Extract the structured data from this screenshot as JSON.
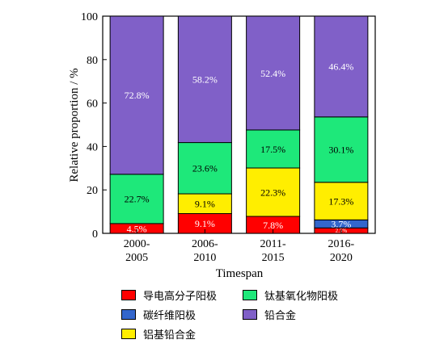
{
  "chart_data": {
    "type": "bar",
    "stacked": true,
    "xlabel": "Timespan",
    "ylabel": "Relative proportion / %",
    "ylim": [
      0,
      100
    ],
    "yticks": [
      0,
      20,
      40,
      60,
      80,
      100
    ],
    "categories": [
      [
        "2000-",
        "2005"
      ],
      [
        "2006-",
        "2010"
      ],
      [
        "2011-",
        "2015"
      ],
      [
        "2016-",
        "2020"
      ]
    ],
    "series": [
      {
        "name": "导电高分子阳极",
        "color": "#ff0000",
        "values": [
          4.5,
          9.1,
          7.8,
          2.5
        ],
        "labels": [
          "4.5%",
          "9.1%",
          "7.8%",
          "2.5%"
        ],
        "label_color": "#ffffff"
      },
      {
        "name": "碳纤维阳极",
        "color": "#3366cc",
        "values": [
          0,
          0,
          0,
          3.7
        ],
        "labels": [
          "",
          "",
          "",
          "3.7%"
        ],
        "label_color": "#ffffff"
      },
      {
        "name": "铝基铅合金",
        "color": "#ffee00",
        "values": [
          0,
          9.1,
          22.3,
          17.3
        ],
        "labels": [
          "",
          "9.1%",
          "22.3%",
          "17.3%"
        ],
        "label_color": "#000000"
      },
      {
        "name": "钛基氧化物阳极",
        "color": "#1ee87a",
        "values": [
          22.7,
          23.6,
          17.5,
          30.1
        ],
        "labels": [
          "22.7%",
          "23.6%",
          "17.5%",
          "30.1%"
        ],
        "label_color": "#000000"
      },
      {
        "name": "铅合金",
        "color": "#8060c8",
        "values": [
          72.8,
          58.2,
          52.4,
          46.4
        ],
        "labels": [
          "72.8%",
          "58.2%",
          "52.4%",
          "46.4%"
        ],
        "label_color": "#ffffff"
      }
    ],
    "legend_order": [
      0,
      3,
      1,
      4,
      2
    ],
    "legend_placement": "bottom",
    "grid": false
  }
}
